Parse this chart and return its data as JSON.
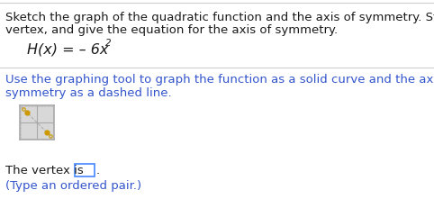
{
  "bg_color": "#ffffff",
  "separator_color": "#cccccc",
  "black": "#1a1a1a",
  "blue": "#3355cc",
  "formula_color": "#1a1a1a",
  "font_size": 9.5,
  "font_size_formula": 11.5,
  "line1": "Sketch the graph of the quadratic function and the axis of symmetry. State the",
  "line2": "vertex, and give the equation for the axis of symmetry.",
  "formula": "H(x) = – 6x",
  "superscript": "2",
  "inst1": "Use the graphing tool to graph the function as a solid curve and the axis of",
  "inst2": "symmetry as a dashed line.",
  "vertex_label": "The vertex is ",
  "type_label": "(Type an ordered pair.)",
  "input_box_color": "#4488ff"
}
